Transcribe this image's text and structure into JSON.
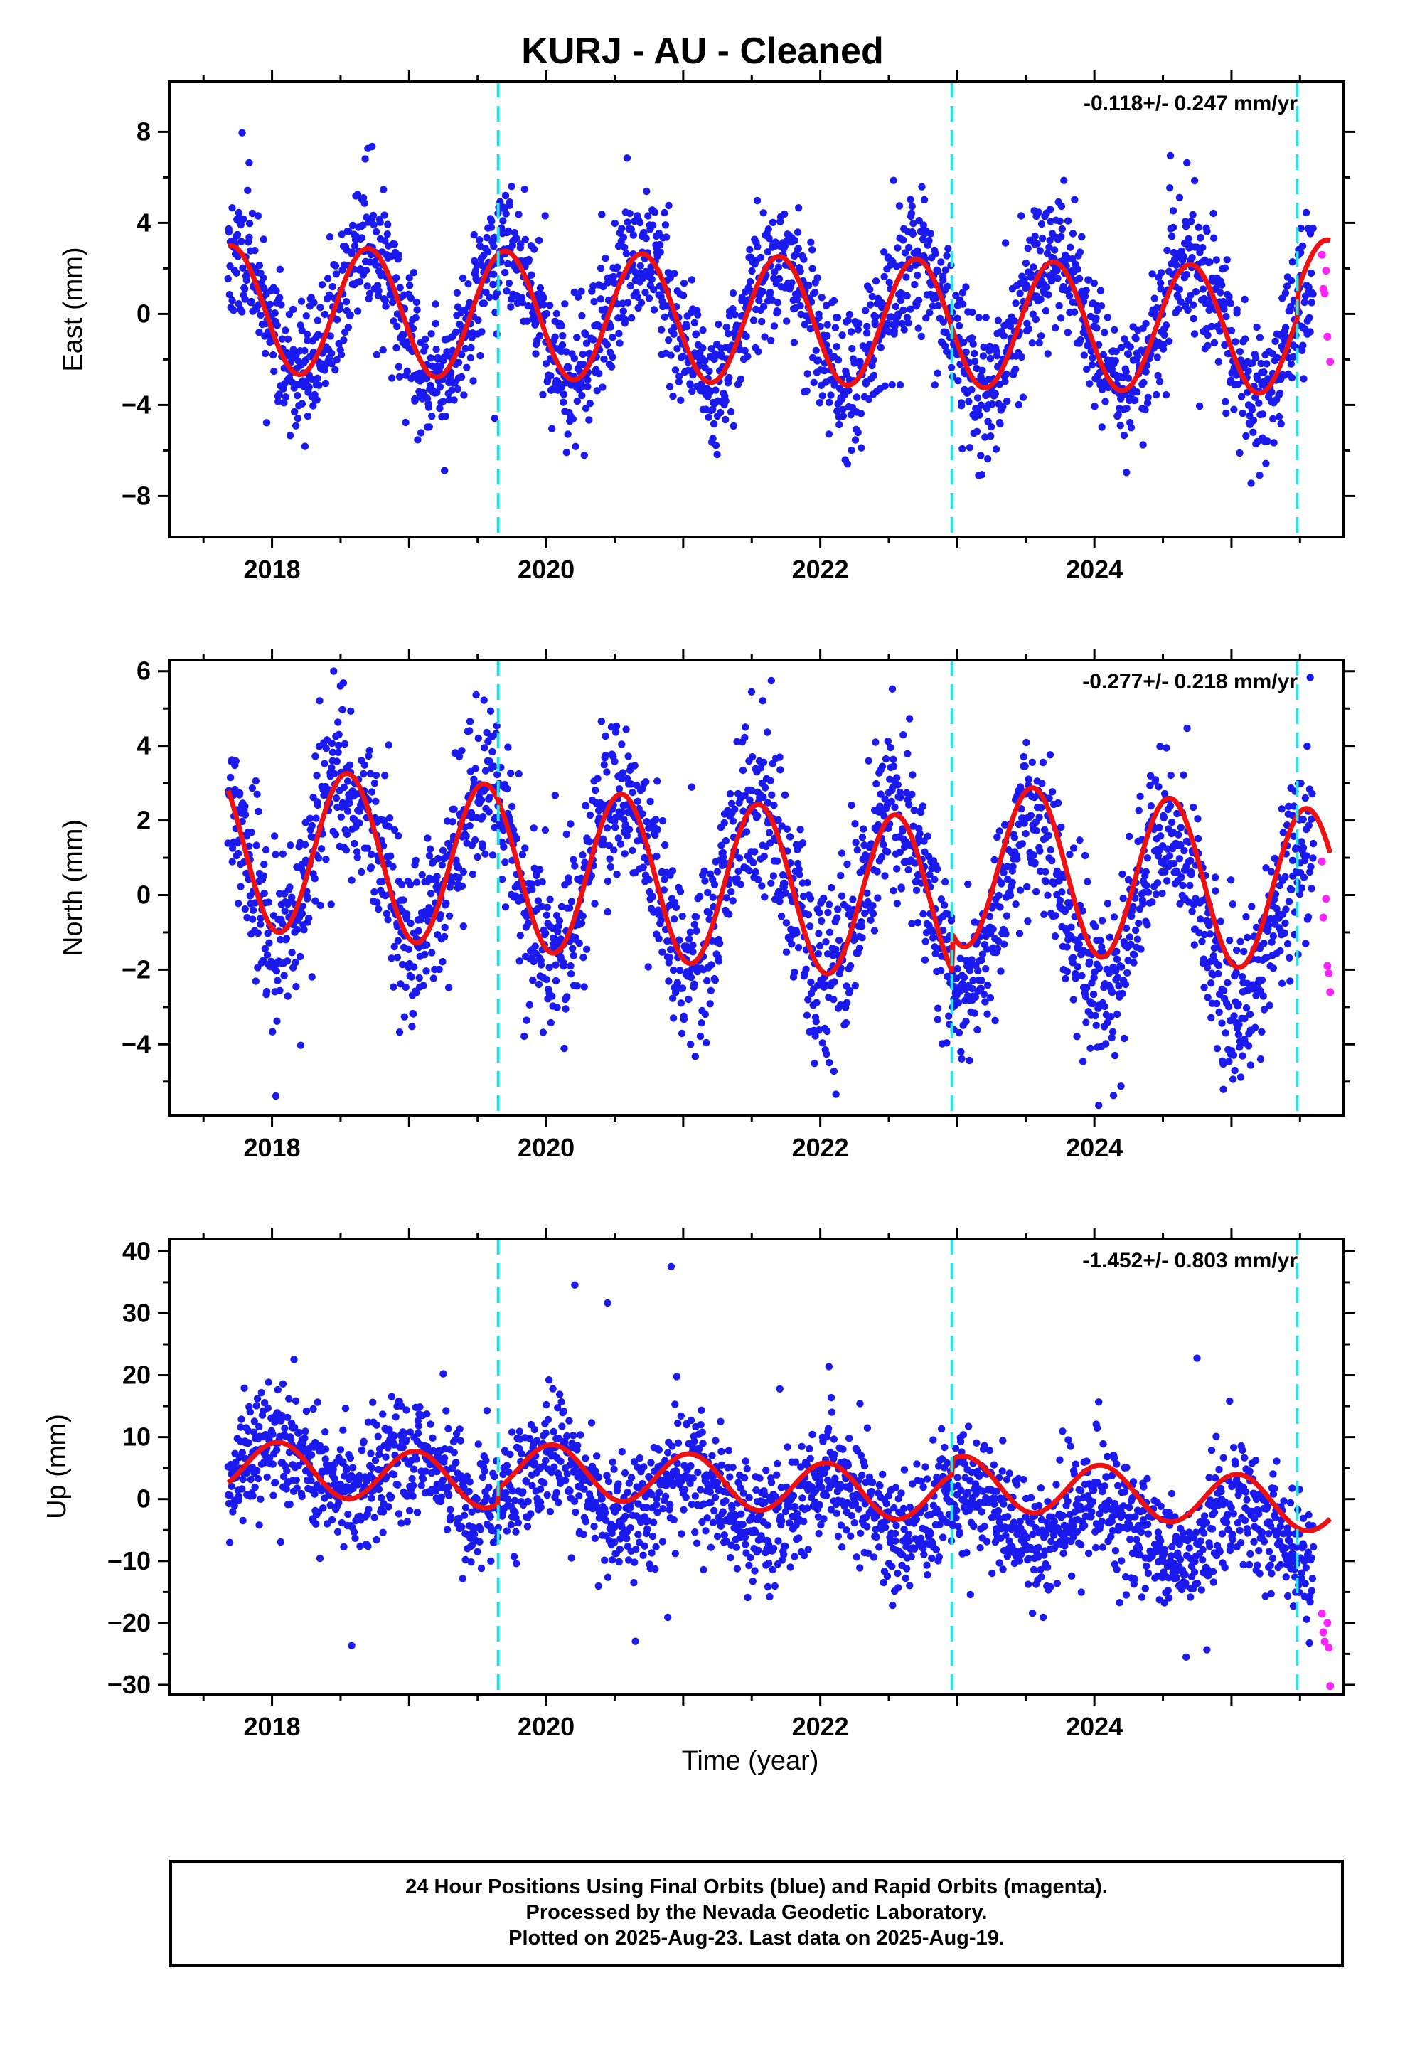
{
  "title": "KURJ  - AU - Cleaned",
  "xlabel": "Time (year)",
  "footer": {
    "line1": "24 Hour Positions Using Final Orbits (blue) and Rapid Orbits (magenta).",
    "line2": "Processed by the Nevada Geodetic Laboratory.",
    "line3": "Plotted on 2025-Aug-23. Last data on 2025-Aug-19."
  },
  "colors": {
    "final_orbits": "#1a1aee",
    "rapid_orbits": "#ff22ff",
    "model_fit": "#ee1111",
    "equipment_change": "#22e6e6"
  },
  "chart_data": [
    {
      "type": "scatter",
      "panel": "east",
      "ylabel": "East (mm)",
      "rate_text": "-0.118+/- 0.247 mm/yr",
      "xlim": [
        2017.25,
        2025.82
      ],
      "ylim": [
        -9.8,
        10.2
      ],
      "xticks": [
        2018,
        2020,
        2022,
        2024
      ],
      "yticks": [
        -8,
        -4,
        0,
        4,
        8
      ],
      "yticklabels": [
        "−8",
        "−4",
        "0",
        "4",
        "8"
      ],
      "minor_yticks": [
        -6,
        -2,
        2,
        6
      ],
      "equipment_changes": [
        2019.65,
        2022.96,
        2025.48
      ],
      "model": {
        "trend": -0.118,
        "amplitude": 2.8,
        "phase": 2017.7,
        "offset": 0.2,
        "start": 2017.68,
        "end": 2025.72,
        "breaks": [
          2025.48
        ]
      },
      "scatter": {
        "noise": 1.5,
        "start": 2017.68,
        "end": 2025.6,
        "count": 2300,
        "seed": 11
      },
      "rapid_points": [
        [
          2025.66,
          2.6
        ],
        [
          2025.67,
          1.1
        ],
        [
          2025.68,
          0.9
        ],
        [
          2025.7,
          -1.0
        ],
        [
          2025.72,
          -2.1
        ],
        [
          2025.69,
          1.9
        ]
      ]
    },
    {
      "type": "scatter",
      "panel": "north",
      "ylabel": "North (mm)",
      "rate_text": "-0.277+/- 0.218 mm/yr",
      "xlim": [
        2017.25,
        2025.82
      ],
      "ylim": [
        -5.9,
        6.3
      ],
      "xticks": [
        2018,
        2020,
        2022,
        2024
      ],
      "yticks": [
        -4,
        -2,
        0,
        2,
        4,
        6
      ],
      "yticklabels": [
        "−4",
        "−2",
        "0",
        "2",
        "4",
        "6"
      ],
      "minor_yticks": [
        -5,
        -3,
        -1,
        1,
        3,
        5
      ],
      "equipment_changes": [
        2019.65,
        2022.96,
        2025.48
      ],
      "model": {
        "trend": -0.277,
        "amplitude": 2.2,
        "phase": 2018.55,
        "offset": 1.3,
        "start": 2017.68,
        "end": 2025.72,
        "breaks": [
          2022.96
        ]
      },
      "scatter": {
        "noise": 1.1,
        "start": 2017.68,
        "end": 2025.6,
        "count": 2300,
        "seed": 23
      },
      "rapid_points": [
        [
          2025.66,
          0.9
        ],
        [
          2025.67,
          -0.6
        ],
        [
          2025.69,
          -0.1
        ],
        [
          2025.7,
          -1.9
        ],
        [
          2025.71,
          -2.1
        ],
        [
          2025.72,
          -2.6
        ]
      ]
    },
    {
      "type": "scatter",
      "panel": "up",
      "ylabel": "Up (mm)",
      "rate_text": "-1.452+/- 0.803 mm/yr",
      "xlim": [
        2017.25,
        2025.82
      ],
      "ylim": [
        -31.5,
        42
      ],
      "xticks": [
        2018,
        2020,
        2022,
        2024
      ],
      "yticks": [
        -30,
        -20,
        -10,
        0,
        10,
        20,
        30,
        40
      ],
      "yticklabels": [
        "−30",
        "−20",
        "−10",
        "0",
        "10",
        "20",
        "30",
        "40"
      ],
      "minor_yticks": [
        -25,
        -15,
        -5,
        5,
        15,
        25,
        35
      ],
      "equipment_changes": [
        2019.65,
        2022.96,
        2025.48
      ],
      "model": {
        "trend": -1.452,
        "amplitude": 4.2,
        "phase": 2018.05,
        "offset": 5.5,
        "start": 2017.68,
        "end": 2025.72,
        "breaks": [
          2019.65,
          2022.96
        ]
      },
      "scatter": {
        "noise": 4.8,
        "start": 2017.68,
        "end": 2025.6,
        "count": 2300,
        "seed": 37
      },
      "rapid_points": [
        [
          2025.66,
          -18.5
        ],
        [
          2025.67,
          -21.5
        ],
        [
          2025.68,
          -23.0
        ],
        [
          2025.7,
          -20.0
        ],
        [
          2025.71,
          -24.0
        ],
        [
          2025.72,
          -30.2
        ]
      ]
    }
  ]
}
